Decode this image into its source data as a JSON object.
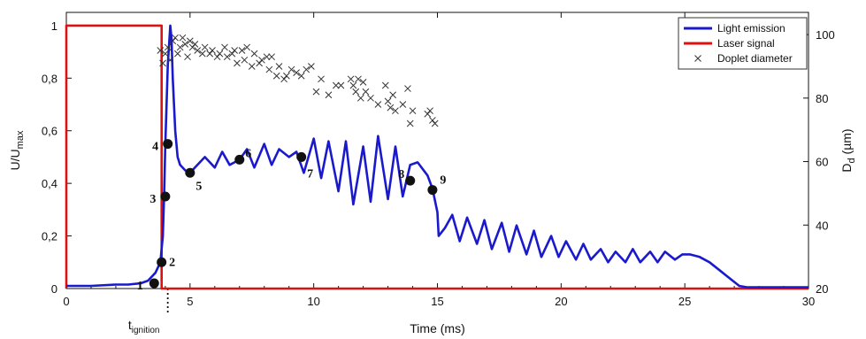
{
  "chart_data": {
    "type": "line",
    "title": "",
    "xlabel": "Time (ms)",
    "ylabel_left": {
      "main": "U/U",
      "sub": "max"
    },
    "ylabel_right": {
      "main": "D",
      "sub": "d",
      "unit": " (µm)"
    },
    "xlim": [
      0,
      30
    ],
    "ylim_left": [
      0,
      1.05
    ],
    "ylim_right": [
      20,
      107
    ],
    "x_ticks": [
      {
        "value": 0,
        "label": "0"
      },
      {
        "value": 5,
        "label": "5"
      },
      {
        "value": 10,
        "label": "10"
      },
      {
        "value": 15,
        "label": "15"
      },
      {
        "value": 20,
        "label": "20"
      },
      {
        "value": 25,
        "label": "25"
      },
      {
        "value": 30,
        "label": "30"
      }
    ],
    "y_ticks_left": [
      {
        "value": 0,
        "label": "0"
      },
      {
        "value": 0.2,
        "label": "0,2"
      },
      {
        "value": 0.4,
        "label": "0,4"
      },
      {
        "value": 0.6,
        "label": "0,6"
      },
      {
        "value": 0.8,
        "label": "0,8"
      },
      {
        "value": 1.0,
        "label": "1"
      }
    ],
    "y_ticks_right": [
      {
        "value": 20,
        "label": "20"
      },
      {
        "value": 40,
        "label": "40"
      },
      {
        "value": 60,
        "label": "60"
      },
      {
        "value": 80,
        "label": "80"
      },
      {
        "value": 100,
        "label": "100"
      }
    ],
    "annotation": {
      "main": "t",
      "sub": "ignition",
      "x": 4.1
    },
    "grid": false,
    "legend_position": "top-right",
    "colors": {
      "light": "#1a1acc",
      "laser": "#dd1111",
      "marker": "#333333"
    },
    "series": [
      {
        "name": "Light emission",
        "axis": "left",
        "style": "line",
        "x": [
          0,
          1,
          2,
          2.5,
          3,
          3.3,
          3.6,
          3.8,
          3.9,
          3.95,
          4.0,
          4.1,
          4.2,
          4.25,
          4.3,
          4.4,
          4.5,
          4.6,
          4.8,
          5.0,
          5.3,
          5.6,
          6.0,
          6.3,
          6.6,
          7.0,
          7.3,
          7.6,
          8.0,
          8.3,
          8.6,
          9.0,
          9.3,
          9.6,
          10.0,
          10.3,
          10.6,
          11.0,
          11.3,
          11.6,
          12.0,
          12.3,
          12.6,
          13.0,
          13.3,
          13.6,
          13.9,
          14.2,
          14.6,
          14.8,
          15.0,
          15.05,
          15.3,
          15.6,
          15.9,
          16.2,
          16.6,
          16.9,
          17.2,
          17.6,
          17.9,
          18.2,
          18.6,
          18.9,
          19.2,
          19.6,
          19.9,
          20.2,
          20.6,
          20.9,
          21.2,
          21.6,
          21.9,
          22.2,
          22.6,
          22.9,
          23.2,
          23.6,
          23.9,
          24.2,
          24.6,
          24.9,
          25.2,
          25.6,
          26.0,
          26.4,
          26.8,
          27.2,
          27.5,
          28,
          29,
          30
        ],
        "y": [
          0.01,
          0.01,
          0.015,
          0.015,
          0.02,
          0.03,
          0.06,
          0.1,
          0.2,
          0.35,
          0.55,
          0.85,
          1.0,
          0.95,
          0.8,
          0.6,
          0.5,
          0.47,
          0.45,
          0.44,
          0.47,
          0.5,
          0.46,
          0.52,
          0.47,
          0.49,
          0.53,
          0.46,
          0.55,
          0.47,
          0.53,
          0.5,
          0.52,
          0.44,
          0.57,
          0.42,
          0.56,
          0.37,
          0.56,
          0.32,
          0.54,
          0.33,
          0.58,
          0.34,
          0.54,
          0.35,
          0.47,
          0.48,
          0.43,
          0.38,
          0.29,
          0.2,
          0.23,
          0.28,
          0.18,
          0.27,
          0.17,
          0.26,
          0.15,
          0.25,
          0.14,
          0.24,
          0.13,
          0.22,
          0.12,
          0.2,
          0.12,
          0.18,
          0.11,
          0.17,
          0.11,
          0.15,
          0.1,
          0.14,
          0.1,
          0.15,
          0.1,
          0.14,
          0.1,
          0.14,
          0.11,
          0.13,
          0.13,
          0.12,
          0.1,
          0.07,
          0.04,
          0.01,
          0.005,
          0.005,
          0.005,
          0.005
        ]
      },
      {
        "name": "Laser signal",
        "axis": "left",
        "style": "line",
        "x": [
          0,
          0,
          3.85,
          3.85,
          30
        ],
        "y": [
          0,
          1.0,
          1.0,
          0,
          0
        ]
      },
      {
        "name": "Doplet diameter",
        "axis": "right",
        "style": "markers",
        "x": [
          3.8,
          3.9,
          4.0,
          4.1,
          4.2,
          4.3,
          4.4,
          4.5,
          4.6,
          4.7,
          4.8,
          4.9,
          5.0,
          5.1,
          5.2,
          5.3,
          5.5,
          5.6,
          5.8,
          5.9,
          6.1,
          6.2,
          6.4,
          6.5,
          6.7,
          6.8,
          6.9,
          7.1,
          7.2,
          7.3,
          7.5,
          7.6,
          7.8,
          7.9,
          8.1,
          8.2,
          8.3,
          8.5,
          8.6,
          8.8,
          8.9,
          9.1,
          9.3,
          9.5,
          9.7,
          9.9,
          10.1,
          10.3,
          10.6,
          10.9,
          11.1,
          11.5,
          11.6,
          11.7,
          11.8,
          11.9,
          12.0,
          12.1,
          12.3,
          12.6,
          12.9,
          13.0,
          13.1,
          13.2,
          13.3,
          13.6,
          13.8,
          13.9,
          14.0,
          14.6,
          14.7,
          14.8,
          14.9
        ],
        "y": [
          95,
          91,
          94,
          96,
          92,
          98,
          99,
          94,
          96,
          99,
          97,
          93,
          98,
          96,
          97,
          95,
          94,
          96,
          94,
          95,
          93,
          94,
          96,
          93,
          94,
          95,
          91,
          95,
          92,
          96,
          90,
          94,
          91,
          92,
          93,
          89,
          93,
          87,
          90,
          86,
          87,
          89,
          88,
          87,
          89,
          90,
          82,
          86,
          81,
          84,
          84,
          86,
          84,
          82,
          86,
          80,
          85,
          82,
          80,
          78,
          84,
          79,
          77,
          81,
          76,
          78,
          83,
          72,
          76,
          75,
          76,
          73,
          72
        ]
      }
    ],
    "labeled_points": [
      {
        "label": "1",
        "x": 3.55,
        "y": 0.02
      },
      {
        "label": "2",
        "x": 3.85,
        "y": 0.1
      },
      {
        "label": "3",
        "x": 4.0,
        "y": 0.35
      },
      {
        "label": "4",
        "x": 4.1,
        "y": 0.55
      },
      {
        "label": "5",
        "x": 5.0,
        "y": 0.44
      },
      {
        "label": "6",
        "x": 7.0,
        "y": 0.49
      },
      {
        "label": "7",
        "x": 9.5,
        "y": 0.5
      },
      {
        "label": "8",
        "x": 13.9,
        "y": 0.41
      },
      {
        "label": "9",
        "x": 14.8,
        "y": 0.375
      }
    ]
  }
}
